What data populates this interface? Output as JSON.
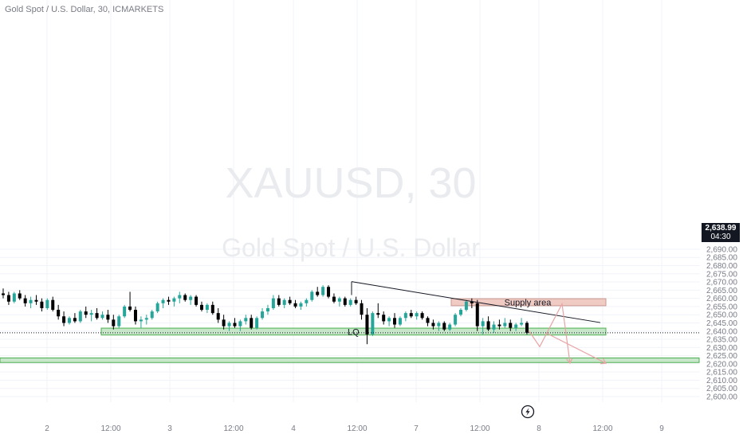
{
  "header": {
    "title": "Gold Spot / U.S. Dollar, 30, ICMARKETS"
  },
  "watermark": {
    "symbol": "XAUUSD, 30",
    "name": "Gold Spot / U.S. Dollar"
  },
  "price_tag": {
    "price": "2,638.99",
    "countdown": "04:30"
  },
  "annotations": {
    "supply": "Supply area",
    "lq": "LQ"
  },
  "chart_data": {
    "type": "candlestick",
    "symbol": "Gold Spot / U.S. Dollar",
    "interval": "30",
    "exchange": "ICMARKETS",
    "y_axis": {
      "range": [
        2596,
        2692
      ],
      "ticks": [
        2600,
        2605,
        2610,
        2615,
        2620,
        2625,
        2630,
        2635,
        2640,
        2645,
        2650,
        2655,
        2660,
        2665,
        2670,
        2675,
        2680,
        2685,
        2690
      ],
      "tick_labels": [
        "2,600.00",
        "2,605.00",
        "2,610.00",
        "2,615.00",
        "2,620.00",
        "2,625.00",
        "2,630.00",
        "2,635.00",
        "2,640.00",
        "2,645.00",
        "2,650.00",
        "2,655.00",
        "2,660.00",
        "2,665.00",
        "2,670.00",
        "2,675.00",
        "2,680.00",
        "2,685.00",
        "2,690.00"
      ]
    },
    "x_axis": {
      "tick_labels": [
        "2",
        "12:00",
        "3",
        "12:00",
        "4",
        "12:00",
        "7",
        "12:00",
        "8",
        "12:00",
        "9"
      ]
    },
    "last_price": 2638.99,
    "candles": [
      [
        2663,
        2666,
        2660,
        2662
      ],
      [
        2662,
        2664,
        2656,
        2658
      ],
      [
        2658,
        2664,
        2657,
        2663
      ],
      [
        2663,
        2665,
        2659,
        2660
      ],
      [
        2660,
        2662,
        2655,
        2657
      ],
      [
        2657,
        2661,
        2654,
        2659
      ],
      [
        2659,
        2662,
        2656,
        2658
      ],
      [
        2658,
        2660,
        2652,
        2654
      ],
      [
        2654,
        2660,
        2653,
        2659
      ],
      [
        2659,
        2661,
        2652,
        2653
      ],
      [
        2653,
        2656,
        2647,
        2649
      ],
      [
        2649,
        2652,
        2643,
        2645
      ],
      [
        2645,
        2649,
        2644,
        2648
      ],
      [
        2648,
        2651,
        2645,
        2646
      ],
      [
        2646,
        2653,
        2645,
        2652
      ],
      [
        2652,
        2655,
        2648,
        2650
      ],
      [
        2650,
        2653,
        2646,
        2651
      ],
      [
        2651,
        2654,
        2647,
        2648
      ],
      [
        2648,
        2652,
        2647,
        2650
      ],
      [
        2650,
        2653,
        2645,
        2647
      ],
      [
        2647,
        2650,
        2641,
        2643
      ],
      [
        2643,
        2650,
        2642,
        2649
      ],
      [
        2649,
        2656,
        2648,
        2655
      ],
      [
        2655,
        2664,
        2652,
        2653
      ],
      [
        2653,
        2655,
        2644,
        2646
      ],
      [
        2646,
        2649,
        2642,
        2647
      ],
      [
        2647,
        2650,
        2644,
        2648
      ],
      [
        2648,
        2653,
        2647,
        2652
      ],
      [
        2652,
        2658,
        2651,
        2657
      ],
      [
        2657,
        2660,
        2654,
        2659
      ],
      [
        2659,
        2661,
        2656,
        2658
      ],
      [
        2658,
        2661,
        2655,
        2660
      ],
      [
        2660,
        2664,
        2657,
        2662
      ],
      [
        2662,
        2663,
        2658,
        2659
      ],
      [
        2659,
        2662,
        2656,
        2661
      ],
      [
        2661,
        2662,
        2655,
        2656
      ],
      [
        2656,
        2658,
        2652,
        2653
      ],
      [
        2653,
        2657,
        2651,
        2656
      ],
      [
        2656,
        2658,
        2650,
        2651
      ],
      [
        2651,
        2654,
        2645,
        2647
      ],
      [
        2647,
        2650,
        2641,
        2643
      ],
      [
        2643,
        2646,
        2640,
        2645
      ],
      [
        2645,
        2648,
        2642,
        2643
      ],
      [
        2643,
        2647,
        2640,
        2646
      ],
      [
        2646,
        2650,
        2644,
        2648
      ],
      [
        2648,
        2650,
        2641,
        2642
      ],
      [
        2642,
        2649,
        2641,
        2648
      ],
      [
        2648,
        2654,
        2647,
        2652
      ],
      [
        2652,
        2656,
        2650,
        2654
      ],
      [
        2654,
        2662,
        2653,
        2660
      ],
      [
        2660,
        2662,
        2655,
        2656
      ],
      [
        2656,
        2660,
        2654,
        2659
      ],
      [
        2659,
        2661,
        2656,
        2657
      ],
      [
        2657,
        2659,
        2654,
        2655
      ],
      [
        2655,
        2658,
        2653,
        2657
      ],
      [
        2657,
        2660,
        2655,
        2659
      ],
      [
        2659,
        2665,
        2658,
        2664
      ],
      [
        2664,
        2667,
        2661,
        2662
      ],
      [
        2662,
        2668,
        2661,
        2667
      ],
      [
        2667,
        2668,
        2660,
        2661
      ],
      [
        2661,
        2663,
        2657,
        2658
      ],
      [
        2658,
        2661,
        2655,
        2660
      ],
      [
        2660,
        2661,
        2655,
        2656
      ],
      [
        2656,
        2660,
        2655,
        2659
      ],
      [
        2659,
        2661,
        2656,
        2657
      ],
      [
        2657,
        2659,
        2647,
        2650
      ],
      [
        2650,
        2654,
        2632,
        2638
      ],
      [
        2638,
        2652,
        2637,
        2651
      ],
      [
        2651,
        2657,
        2648,
        2650
      ],
      [
        2650,
        2652,
        2644,
        2646
      ],
      [
        2646,
        2649,
        2643,
        2648
      ],
      [
        2648,
        2651,
        2642,
        2644
      ],
      [
        2644,
        2649,
        2643,
        2648
      ],
      [
        2648,
        2652,
        2646,
        2651
      ],
      [
        2651,
        2653,
        2648,
        2649
      ],
      [
        2649,
        2652,
        2647,
        2651
      ],
      [
        2651,
        2652,
        2647,
        2648
      ],
      [
        2648,
        2649,
        2643,
        2645
      ],
      [
        2645,
        2647,
        2641,
        2643
      ],
      [
        2643,
        2646,
        2640,
        2645
      ],
      [
        2645,
        2646,
        2640,
        2641
      ],
      [
        2641,
        2645,
        2640,
        2644
      ],
      [
        2644,
        2651,
        2643,
        2650
      ],
      [
        2650,
        2654,
        2649,
        2653
      ],
      [
        2653,
        2659,
        2652,
        2658
      ],
      [
        2658,
        2660,
        2654,
        2657
      ],
      [
        2657,
        2659,
        2640,
        2643
      ],
      [
        2643,
        2648,
        2638,
        2646
      ],
      [
        2646,
        2649,
        2640,
        2641
      ],
      [
        2641,
        2646,
        2639,
        2644
      ],
      [
        2644,
        2647,
        2641,
        2643
      ],
      [
        2643,
        2648,
        2642,
        2645
      ],
      [
        2645,
        2647,
        2640,
        2642
      ],
      [
        2642,
        2645,
        2640,
        2644
      ],
      [
        2644,
        2648,
        2643,
        2645
      ],
      [
        2645,
        2646,
        2638,
        2639
      ]
    ],
    "zones": [
      {
        "label": "LQ",
        "y_range": [
          2637.6,
          2641.8
        ],
        "color": "#c8e6c9",
        "border": "#4caf50"
      },
      {
        "label": "Supply area",
        "y_range": [
          2655.5,
          2659.8
        ],
        "color": "#efcbc4",
        "border": "#c9988e"
      },
      {
        "label": "",
        "y_range": [
          2620.8,
          2623.6
        ],
        "color": "#c8e6c9",
        "border": "#4caf50"
      }
    ],
    "trendline": {
      "from": [
        2670.2
      ],
      "to": [
        2645.2
      ]
    },
    "colors": {
      "up": "#26a69a",
      "down": "#000000",
      "projection": "#e8a4a4"
    }
  }
}
